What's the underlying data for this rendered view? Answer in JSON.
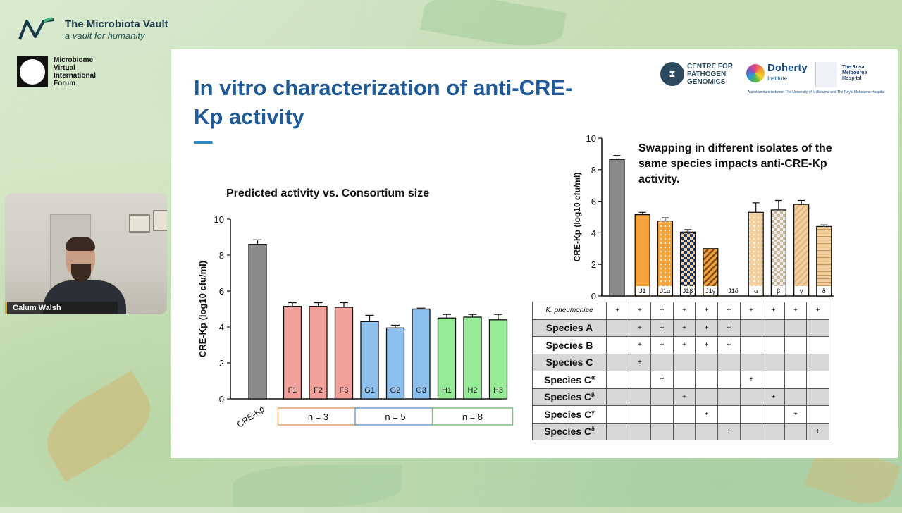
{
  "branding": {
    "vault_title": "The Microbiota Vault",
    "vault_sub": "a vault for humanity",
    "forum_lines": [
      "Microbiome",
      "Virtual",
      "International",
      "Forum"
    ]
  },
  "webcam": {
    "name": "Calum Walsh"
  },
  "slide": {
    "title": "In vitro characterization of anti-CRE-Kp activity",
    "logos": {
      "cpg_lines": [
        "CENTRE FOR",
        "PATHOGEN",
        "GENOMICS"
      ],
      "doherty": "Doherty",
      "doherty_sub": "Institute",
      "rmh_lines": [
        "The Royal",
        "Melbourne",
        "Hospital"
      ],
      "tagline": "A joint venture between The University of Melbourne and The Royal Melbourne Hospital"
    },
    "left_chart_title": "Predicted activity vs. Consortium size",
    "right_chart_title": "Swapping in different isolates of the same species impacts anti-CRE-Kp activity."
  },
  "colors": {
    "grey": "#8a8a8a",
    "salmon": "#f2a09a",
    "blue": "#8ec0ee",
    "green": "#96ec96",
    "orange": "#f5a23a",
    "tan": "#f3cfa0",
    "navy": "#1f3a6a",
    "group_orange": "#e8a060",
    "group_blue": "#6aa0d8",
    "group_green": "#78c878"
  },
  "chart_data": [
    {
      "type": "bar",
      "ylabel": "CRE-Kp (log10 cfu/ml)",
      "ylim": [
        0,
        10
      ],
      "yticks": [
        0,
        2,
        4,
        6,
        8,
        10
      ],
      "categories": [
        "CRE-Kp",
        "F1",
        "F2",
        "F3",
        "G1",
        "G2",
        "G3",
        "H1",
        "H2",
        "H3"
      ],
      "values": [
        8.6,
        5.15,
        5.15,
        5.1,
        4.3,
        3.95,
        5.0,
        4.5,
        4.55,
        4.4
      ],
      "errors": [
        0.25,
        0.2,
        0.2,
        0.25,
        0.35,
        0.15,
        0.05,
        0.2,
        0.15,
        0.3
      ],
      "fill_keys": [
        "grey",
        "salmon",
        "salmon",
        "salmon",
        "blue",
        "blue",
        "blue",
        "green",
        "green",
        "green"
      ],
      "groups": [
        {
          "label": "n = 3",
          "color_key": "group_orange",
          "from": 1,
          "to": 3
        },
        {
          "label": "n = 5",
          "color_key": "group_blue",
          "from": 4,
          "to": 6
        },
        {
          "label": "n = 8",
          "color_key": "group_green",
          "from": 7,
          "to": 9
        }
      ]
    },
    {
      "type": "bar",
      "ylabel": "CRE-Kp (log10 cfu/ml)",
      "ylim": [
        0,
        10
      ],
      "yticks": [
        0,
        2,
        4,
        6,
        8,
        10
      ],
      "categories": [
        "",
        "J1",
        "J1α",
        "J1β",
        "J1γ",
        "J1δ",
        "α",
        "β",
        "γ",
        "δ"
      ],
      "values": [
        8.65,
        5.15,
        4.75,
        4.05,
        3.0,
        0,
        5.3,
        5.45,
        5.8,
        4.4
      ],
      "errors": [
        0.25,
        0.15,
        0.2,
        0.15,
        0,
        0,
        0.6,
        0.6,
        0.25,
        0.1
      ],
      "patterns": [
        "grey",
        "orange",
        "orange-dots",
        "navy-check",
        "hatch",
        "none",
        "tan-dots",
        "tan-check",
        "tan-hatch",
        "tan-lines"
      ]
    }
  ],
  "matrix": {
    "rows": [
      {
        "label": "K. pneumoniae",
        "cells": [
          "+",
          "+",
          "+",
          "+",
          "+",
          "+",
          "+",
          "+",
          "+",
          "+"
        ],
        "shaded": false
      },
      {
        "label": "Species A",
        "cells": [
          "",
          "+",
          "+",
          "+",
          "+",
          "+",
          "",
          "",
          "",
          ""
        ],
        "shaded": true
      },
      {
        "label": "Species B",
        "cells": [
          "",
          "+",
          "+",
          "+",
          "+",
          "+",
          "",
          "",
          "",
          ""
        ],
        "shaded": false
      },
      {
        "label": "Species C",
        "cells": [
          "",
          "+",
          "",
          "",
          "",
          "",
          "",
          "",
          "",
          ""
        ],
        "shaded": true
      },
      {
        "label": "Species C",
        "sup": "α",
        "cells": [
          "",
          "",
          "+",
          "",
          "",
          "",
          "+",
          "",
          "",
          ""
        ],
        "shaded": false
      },
      {
        "label": "Species C",
        "sup": "β",
        "cells": [
          "",
          "",
          "",
          "+",
          "",
          "",
          "",
          "+",
          "",
          ""
        ],
        "shaded": true
      },
      {
        "label": "Species C",
        "sup": "γ",
        "cells": [
          "",
          "",
          "",
          "",
          "+",
          "",
          "",
          "",
          "+",
          ""
        ],
        "shaded": false
      },
      {
        "label": "Species C",
        "sup": "δ",
        "cells": [
          "",
          "",
          "",
          "",
          "",
          "+",
          "",
          "",
          "",
          "+"
        ],
        "shaded": true
      }
    ]
  }
}
